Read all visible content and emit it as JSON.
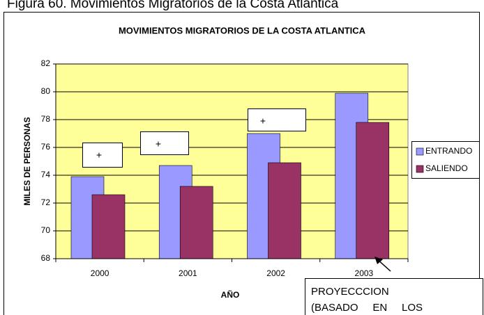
{
  "caption": "Figura 60. Movimientos Migratorios de la Costa Atlántica",
  "chart_data": {
    "type": "bar",
    "title": "MOVIMIENTOS MIGRATORIOS DE LA COSTA ATLANTICA",
    "xlabel": "AÑO",
    "ylabel": "MILES DE PERSONAS",
    "categories": [
      "2000",
      "2001",
      "2002",
      "2003"
    ],
    "series": [
      {
        "name": "ENTRANDO",
        "color": "#9999ff",
        "values": [
          73.9,
          74.7,
          77.0,
          79.9
        ]
      },
      {
        "name": "SALIENDO",
        "color": "#993366",
        "values": [
          72.6,
          73.2,
          74.9,
          77.8
        ]
      }
    ],
    "ylim": [
      68,
      82
    ],
    "yticks": [
      68,
      70,
      72,
      74,
      76,
      78,
      80,
      82
    ],
    "grid": true,
    "legend": "right",
    "plot_color": "#ffff99",
    "annotations": [
      "+",
      "+",
      "+",
      "PROYECCCION",
      "(BASADO     EN     LOS"
    ]
  }
}
